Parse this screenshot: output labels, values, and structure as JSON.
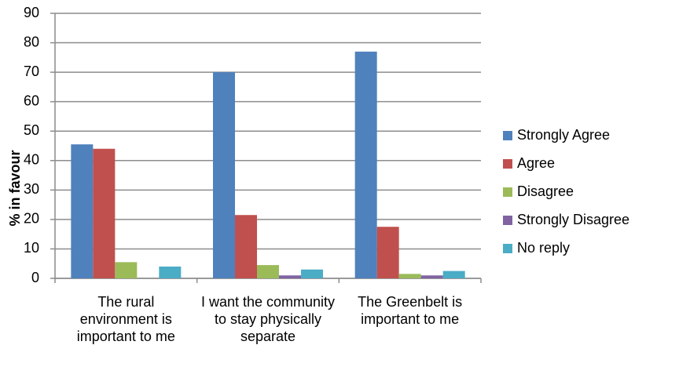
{
  "chart_data": {
    "type": "bar",
    "y_label": "% in favour",
    "categories": [
      "The rural environment is important to me",
      "I want the community to stay physically separate",
      "The Greenbelt is important to me"
    ],
    "series": [
      {
        "name": "Strongly Agree",
        "color": "#4f81bd",
        "values": [
          45.5,
          70,
          77
        ]
      },
      {
        "name": "Agree",
        "color": "#c0504d",
        "values": [
          44,
          21.5,
          17.5
        ]
      },
      {
        "name": "Disagree",
        "color": "#9bbb59",
        "values": [
          5.5,
          4.5,
          1.5
        ]
      },
      {
        "name": "Strongly Disagree",
        "color": "#8064a2",
        "values": [
          0,
          1,
          1
        ]
      },
      {
        "name": "No reply",
        "color": "#4bacc6",
        "values": [
          4,
          3,
          2.5
        ]
      }
    ],
    "ylim": [
      0,
      90
    ],
    "yticks": [
      0,
      10,
      20,
      30,
      40,
      50,
      60,
      70,
      80,
      90
    ],
    "grid": true,
    "legend": "right"
  }
}
